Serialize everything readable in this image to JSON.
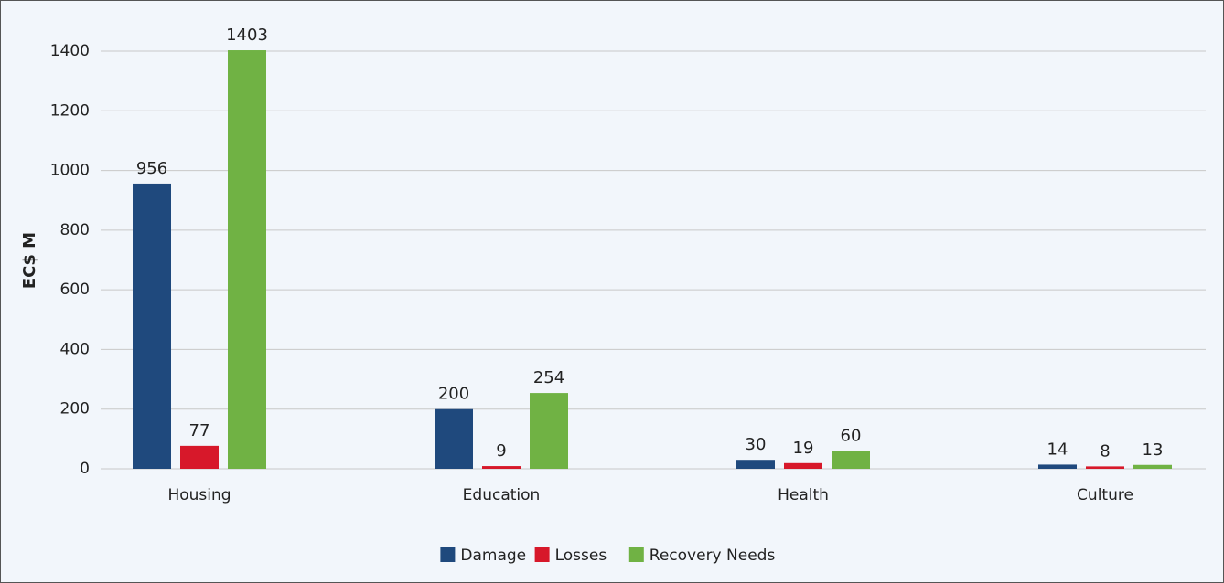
{
  "chart_data": {
    "type": "bar",
    "y_label": "EC$ M",
    "categories": [
      "Housing",
      "Education",
      "Health",
      "Culture"
    ],
    "series": [
      {
        "name": "Damage",
        "color": "#1f497d",
        "values": [
          956,
          200,
          30,
          14
        ]
      },
      {
        "name": "Losses",
        "color": "#d7182a",
        "values": [
          77,
          9,
          19,
          8
        ]
      },
      {
        "name": "Recovery Needs",
        "color": "#70b244",
        "values": [
          1403,
          254,
          60,
          13
        ]
      }
    ],
    "ylim": [
      0,
      1400
    ],
    "yticks": [
      0,
      200,
      400,
      600,
      800,
      1000,
      1200,
      1400
    ],
    "grid": true,
    "legend": "bottom"
  }
}
